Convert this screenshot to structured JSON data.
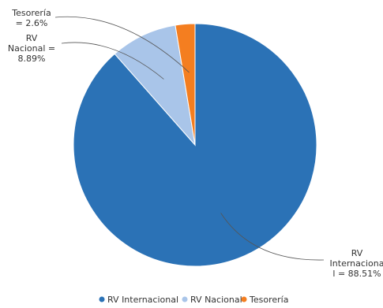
{
  "chart_data": {
    "type": "pie",
    "title": "",
    "slices": [
      {
        "label": "RV Internacional",
        "value": 88.51,
        "color": "#2b72b6",
        "label_lines": [
          "RV",
          "Internaciona",
          "l = 88.51%"
        ]
      },
      {
        "label": "RV Nacional",
        "value": 8.89,
        "color": "#a9c5e9",
        "label_lines": [
          "RV",
          "Nacional =",
          "8.89%"
        ]
      },
      {
        "label": "Tesorería",
        "value": 2.6,
        "color": "#f47e20",
        "label_lines": [
          "Tesorería",
          "= 2.6%"
        ]
      }
    ],
    "legend": {
      "placement": "bottom",
      "items": [
        "RV Internacional",
        "RV Nacional",
        "Tesorería"
      ]
    }
  }
}
